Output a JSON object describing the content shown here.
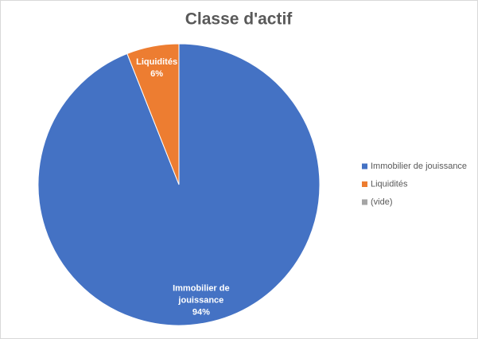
{
  "chart_data": {
    "type": "pie",
    "title": "Classe d'actif",
    "categories": [
      "Immobilier de jouissance",
      "Liquidités",
      "(vide)"
    ],
    "values": [
      94,
      6,
      0
    ],
    "value_labels": [
      "94%",
      "6%",
      null
    ],
    "colors": [
      "#4472c4",
      "#ed7d31",
      "#a5a5a5"
    ],
    "legend": "right"
  }
}
